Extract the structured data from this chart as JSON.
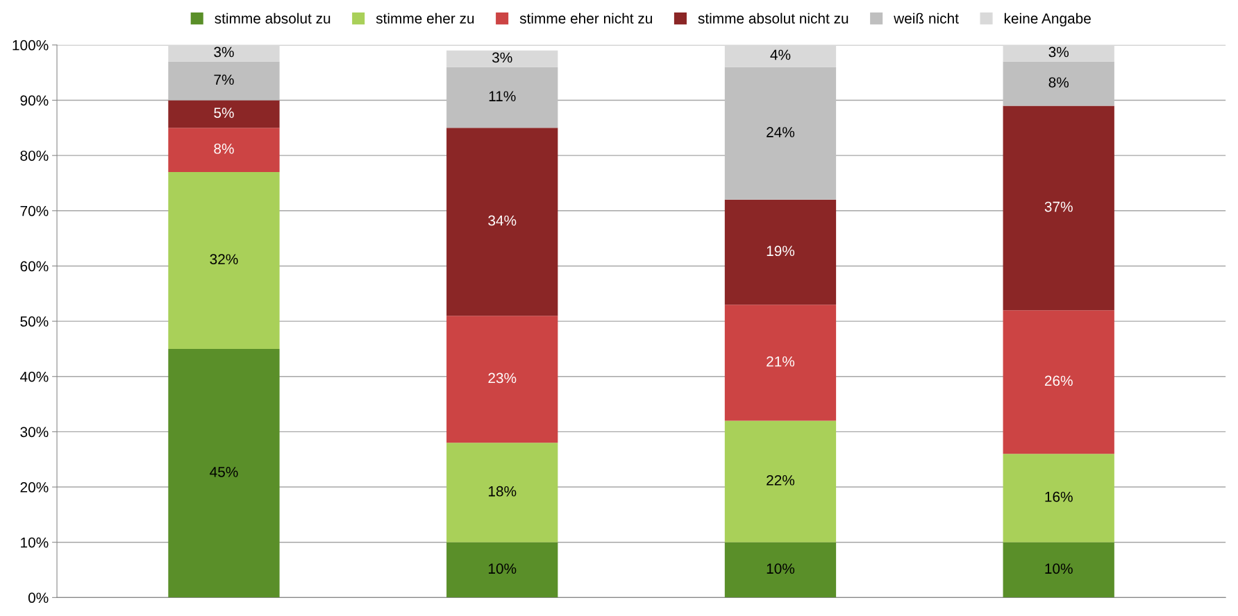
{
  "chart_data": {
    "type": "bar",
    "stacked": true,
    "categories": [
      null,
      null,
      null,
      null
    ],
    "series": [
      {
        "name": "stimme absolut zu",
        "color": "#5a8f29",
        "values": [
          45,
          10,
          10,
          10
        ],
        "value_labels": [
          "45%",
          "10%",
          "10%",
          "10%"
        ]
      },
      {
        "name": "stimme eher zu",
        "color": "#a9d059",
        "values": [
          32,
          18,
          22,
          16
        ],
        "value_labels": [
          "32%",
          "18%",
          "22%",
          "16%"
        ]
      },
      {
        "name": "stimme eher nicht zu",
        "color": "#cc4444",
        "values": [
          8,
          23,
          21,
          26
        ],
        "value_labels": [
          "8%",
          "23%",
          "21%",
          "26%"
        ]
      },
      {
        "name": "stimme absolut nicht zu",
        "color": "#8b2626",
        "values": [
          5,
          34,
          19,
          37
        ],
        "value_labels": [
          "5%",
          "34%",
          "19%",
          "37%"
        ]
      },
      {
        "name": "weiß nicht",
        "color": "#bfbfbf",
        "values": [
          7,
          11,
          24,
          8
        ],
        "value_labels": [
          "7%",
          "11%",
          "24%",
          "8%"
        ]
      },
      {
        "name": "keine Angabe",
        "color": "#d9d9d9",
        "values": [
          3,
          3,
          4,
          3
        ],
        "value_labels": [
          "3%",
          "3%",
          "4%",
          "3%"
        ]
      }
    ],
    "ylim": [
      0,
      100
    ],
    "yticks": [
      {
        "value": 0,
        "label": "0%"
      },
      {
        "value": 10,
        "label": "10%"
      },
      {
        "value": 20,
        "label": "20%"
      },
      {
        "value": 30,
        "label": "30%"
      },
      {
        "value": 40,
        "label": "40%"
      },
      {
        "value": 50,
        "label": "50%"
      },
      {
        "value": 60,
        "label": "60%"
      },
      {
        "value": 70,
        "label": "70%"
      },
      {
        "value": 80,
        "label": "80%"
      },
      {
        "value": 90,
        "label": "90%"
      },
      {
        "value": 100,
        "label": "100%"
      }
    ],
    "grid": "y",
    "legend": "top",
    "tick_labels": "y"
  }
}
